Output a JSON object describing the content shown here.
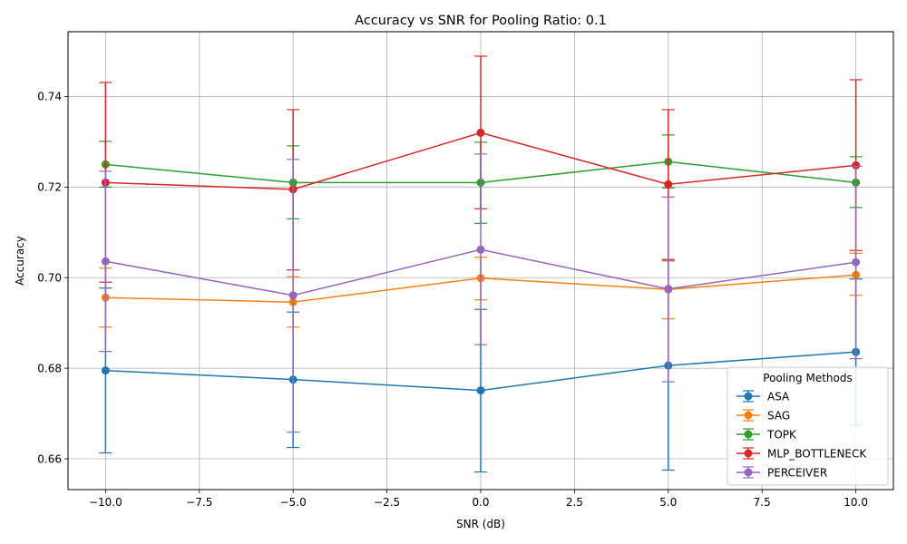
{
  "chart_data": {
    "type": "line",
    "title": "Accuracy vs SNR for Pooling Ratio: 0.1",
    "xlabel": "SNR (dB)",
    "ylabel": "Accuracy",
    "xlim": [
      -11,
      11
    ],
    "ylim": [
      0.6532,
      0.7543
    ],
    "x": [
      -10,
      -5,
      0,
      5,
      10
    ],
    "xticks": [
      -10.0,
      -7.5,
      -5.0,
      -2.5,
      0.0,
      2.5,
      5.0,
      7.5,
      10.0
    ],
    "xtick_labels": [
      "−10.0",
      "−7.5",
      "−5.0",
      "−2.5",
      "0.0",
      "2.5",
      "5.0",
      "7.5",
      "10.0"
    ],
    "yticks": [
      0.66,
      0.68,
      0.7,
      0.72,
      0.74
    ],
    "ytick_labels": [
      "0.66",
      "0.68",
      "0.70",
      "0.72",
      "0.74"
    ],
    "grid": true,
    "legend": {
      "title": "Pooling Methods",
      "placement": "lower-right"
    },
    "series": [
      {
        "name": "ASA",
        "color": "#1f77b4",
        "values": [
          0.6795,
          0.6775,
          0.6751,
          0.6806,
          0.6836
        ],
        "err_low": [
          0.6613,
          0.6625,
          0.6571,
          0.6575,
          0.6675
        ],
        "err_high": [
          0.6977,
          0.6924,
          0.693,
          0.7037,
          0.6997
        ]
      },
      {
        "name": "SAG",
        "color": "#ff7f0e",
        "values": [
          0.6956,
          0.6946,
          0.6999,
          0.6974,
          0.7006
        ],
        "err_low": [
          0.6891,
          0.6891,
          0.6951,
          0.6909,
          0.6961
        ],
        "err_high": [
          0.7021,
          0.7002,
          0.7045,
          0.7038,
          0.7054
        ]
      },
      {
        "name": "TOPK",
        "color": "#2ca02c",
        "values": [
          0.725,
          0.721,
          0.721,
          0.7256,
          0.721
        ],
        "err_low": [
          0.72,
          0.713,
          0.712,
          0.7198,
          0.7155
        ],
        "err_high": [
          0.7301,
          0.7291,
          0.7299,
          0.7315,
          0.7267
        ]
      },
      {
        "name": "MLP_BOTTLENECK",
        "color": "#d62728",
        "values": [
          0.721,
          0.7195,
          0.732,
          0.7206,
          0.7248
        ],
        "err_low": [
          0.699,
          0.7017,
          0.7152,
          0.704,
          0.706
        ],
        "err_high": [
          0.7431,
          0.7371,
          0.7489,
          0.7371,
          0.7437
        ]
      },
      {
        "name": "PERCEIVER",
        "color": "#9467bd",
        "values": [
          0.7036,
          0.6961,
          0.7062,
          0.6975,
          0.7034
        ],
        "err_low": [
          0.6837,
          0.6659,
          0.6852,
          0.677,
          0.6821
        ],
        "err_high": [
          0.7235,
          0.7261,
          0.7273,
          0.7178,
          0.7246
        ]
      }
    ]
  }
}
